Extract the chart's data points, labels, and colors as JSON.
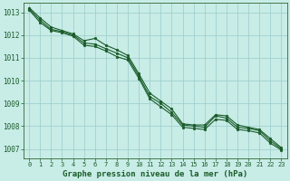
{
  "title": "Graphe pression niveau de la mer (hPa)",
  "background_color": "#c8ece6",
  "grid_color": "#99cccc",
  "line_color": "#1a5c2a",
  "spine_color": "#336633",
  "tick_color": "#1a5c2a",
  "xlim_min": -0.5,
  "xlim_max": 23.5,
  "ylim_min": 1006.6,
  "ylim_max": 1013.4,
  "yticks": [
    1007,
    1008,
    1009,
    1010,
    1011,
    1012,
    1013
  ],
  "xticks": [
    0,
    1,
    2,
    3,
    4,
    5,
    6,
    7,
    8,
    9,
    10,
    11,
    12,
    13,
    14,
    15,
    16,
    17,
    18,
    19,
    20,
    21,
    22,
    23
  ],
  "hours": [
    0,
    1,
    2,
    3,
    4,
    5,
    6,
    7,
    8,
    9,
    10,
    11,
    12,
    13,
    14,
    15,
    16,
    17,
    18,
    19,
    20,
    21,
    22,
    23
  ],
  "line1": [
    1013.2,
    1012.75,
    1012.35,
    1012.2,
    1012.05,
    1011.75,
    1011.85,
    1011.55,
    1011.35,
    1011.1,
    1010.3,
    1009.45,
    1009.1,
    1008.75,
    1008.1,
    1008.05,
    1008.05,
    1008.5,
    1008.45,
    1008.05,
    1007.95,
    1007.85,
    1007.45,
    1007.05
  ],
  "line2": [
    1013.15,
    1012.65,
    1012.25,
    1012.15,
    1012.0,
    1011.65,
    1011.6,
    1011.4,
    1011.2,
    1011.0,
    1010.2,
    1009.3,
    1009.0,
    1008.6,
    1008.05,
    1008.0,
    1007.95,
    1008.45,
    1008.35,
    1007.95,
    1007.9,
    1007.8,
    1007.35,
    1007.0
  ],
  "line3": [
    1013.1,
    1012.55,
    1012.2,
    1012.1,
    1011.95,
    1011.55,
    1011.5,
    1011.3,
    1011.05,
    1010.9,
    1010.1,
    1009.2,
    1008.85,
    1008.5,
    1007.95,
    1007.9,
    1007.85,
    1008.3,
    1008.25,
    1007.85,
    1007.8,
    1007.7,
    1007.25,
    1006.95
  ],
  "ylabel_fontsize": 5.5,
  "xlabel_fontsize": 5.0,
  "title_fontsize": 6.5,
  "marker_size": 2.0,
  "line_width": 0.8
}
